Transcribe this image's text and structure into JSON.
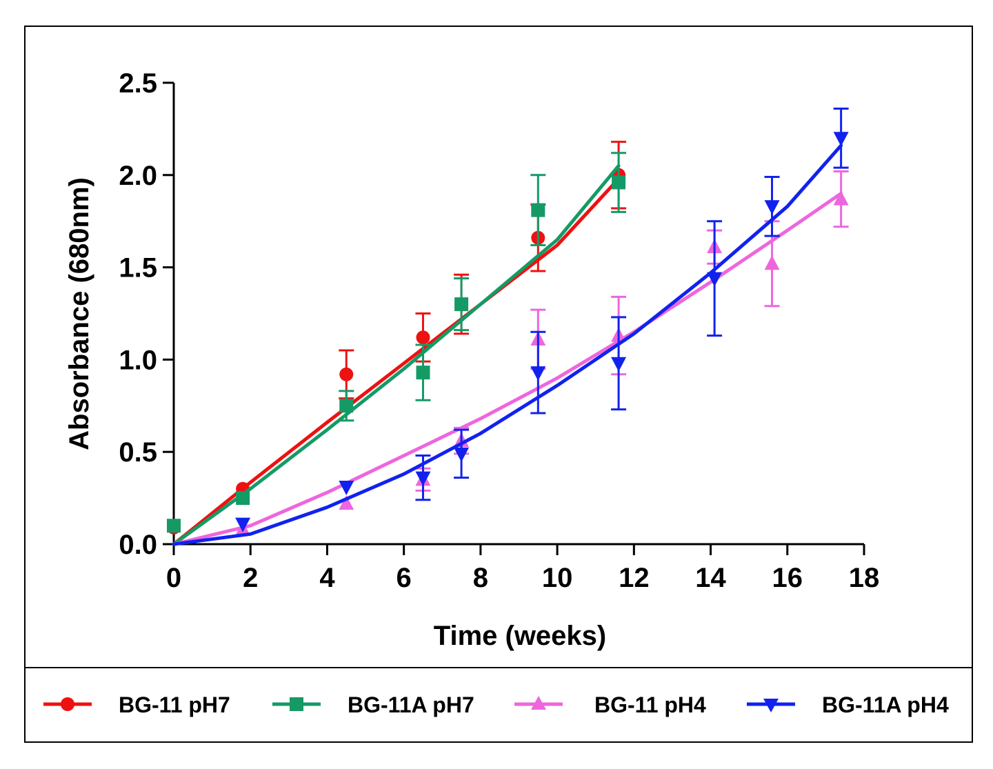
{
  "chart_data": {
    "type": "scatter",
    "title": "",
    "xlabel": "Time (weeks)",
    "ylabel": "Absorbance (680nm)",
    "xlim": [
      0,
      18
    ],
    "ylim": [
      0,
      2.5
    ],
    "x_ticks": [
      0,
      2,
      4,
      6,
      8,
      10,
      12,
      14,
      16,
      18
    ],
    "y_ticks": [
      0.0,
      0.5,
      1.0,
      1.5,
      2.0,
      2.5
    ],
    "x_tick_labels": [
      "0",
      "2",
      "4",
      "6",
      "8",
      "10",
      "12",
      "14",
      "16",
      "18"
    ],
    "y_tick_labels": [
      "0.0",
      "0.5",
      "1.0",
      "1.5",
      "2.0",
      "2.5"
    ],
    "grid": false,
    "legend_position": "bottom",
    "series": [
      {
        "name": "BG-11 pH7",
        "color": "#ee1111",
        "marker": "circle",
        "x": [
          0,
          1.8,
          4.5,
          6.5,
          7.5,
          9.5,
          11.6
        ],
        "y": [
          0.09,
          0.3,
          0.92,
          1.12,
          1.3,
          1.66,
          2.0
        ],
        "err": [
          0.0,
          0.0,
          0.13,
          0.13,
          0.16,
          0.18,
          0.18
        ],
        "fit_x": [
          0,
          2,
          4,
          6,
          8,
          10,
          11.6
        ],
        "fit_y": [
          0.0,
          0.335,
          0.66,
          0.98,
          1.3,
          1.62,
          1.98
        ]
      },
      {
        "name": "BG-11A pH7",
        "color": "#159a66",
        "marker": "square",
        "x": [
          0,
          1.8,
          4.5,
          6.5,
          7.5,
          9.5,
          11.6
        ],
        "y": [
          0.1,
          0.25,
          0.75,
          0.93,
          1.3,
          1.81,
          1.96
        ],
        "err": [
          0.0,
          0.0,
          0.08,
          0.15,
          0.14,
          0.19,
          0.16
        ],
        "fit_x": [
          0,
          2,
          4,
          6,
          8,
          10,
          11.6
        ],
        "fit_y": [
          0.0,
          0.3,
          0.62,
          0.95,
          1.3,
          1.65,
          2.05
        ]
      },
      {
        "name": "BG-11 pH4",
        "color": "#ee66dd",
        "marker": "triangle-up",
        "x": [
          1.8,
          4.5,
          6.5,
          7.5,
          9.5,
          11.6,
          14.1,
          15.6,
          17.4
        ],
        "y": [
          0.08,
          0.22,
          0.35,
          0.56,
          1.11,
          1.13,
          1.61,
          1.52,
          1.87
        ],
        "err": [
          0.0,
          0.0,
          0.06,
          0.07,
          0.16,
          0.21,
          0.09,
          0.23,
          0.15
        ],
        "fit_x": [
          0,
          2,
          4,
          6,
          8,
          10,
          12,
          14,
          16,
          17.4
        ],
        "fit_y": [
          0.0,
          0.1,
          0.28,
          0.48,
          0.68,
          0.9,
          1.15,
          1.42,
          1.7,
          1.9
        ]
      },
      {
        "name": "BG-11A pH4",
        "color": "#1122ee",
        "marker": "triangle-down",
        "x": [
          1.8,
          4.5,
          6.5,
          7.5,
          9.5,
          11.6,
          14.1,
          15.6,
          17.4
        ],
        "y": [
          0.11,
          0.31,
          0.36,
          0.49,
          0.93,
          0.98,
          1.44,
          1.83,
          2.2
        ],
        "err": [
          0.0,
          0.0,
          0.12,
          0.13,
          0.22,
          0.25,
          0.31,
          0.16,
          0.16
        ],
        "fit_x": [
          0,
          2,
          4,
          6,
          8,
          10,
          12,
          14,
          16,
          17.4
        ],
        "fit_y": [
          0.0,
          0.055,
          0.2,
          0.38,
          0.6,
          0.86,
          1.14,
          1.47,
          1.83,
          2.16
        ]
      }
    ]
  }
}
